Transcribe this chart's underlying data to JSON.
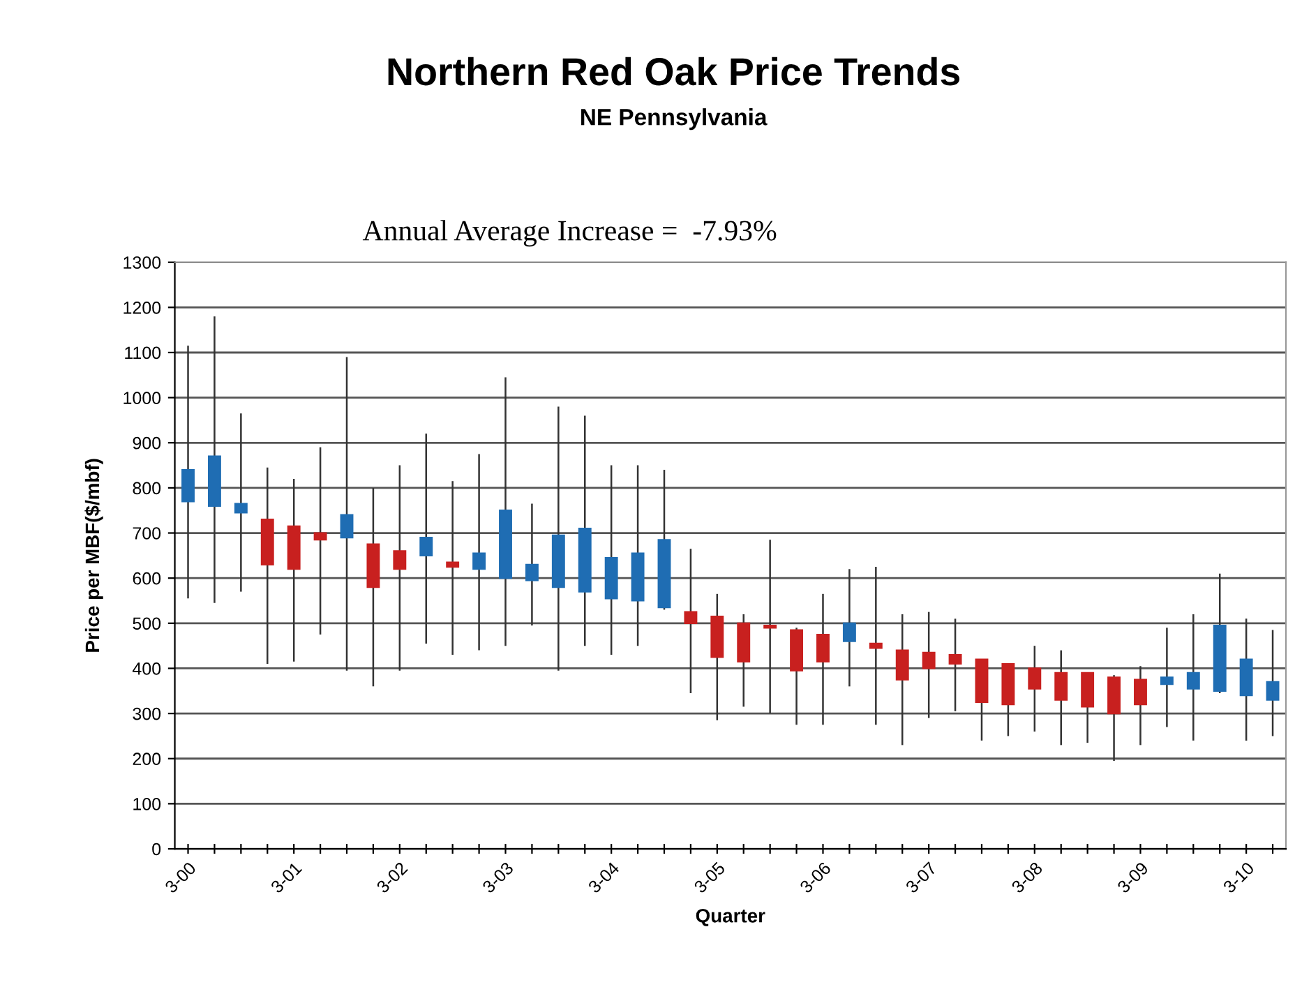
{
  "chart_data": {
    "type": "candlestick",
    "title": "Northern Red Oak Price Trends",
    "subtitle": "NE Pennsylvania",
    "xlabel": "Quarter",
    "ylabel": "Price per MBF($/mbf)",
    "annotations": [
      "Annual Average Increase =  -7.93%"
    ],
    "categories": [
      "3-00",
      null,
      null,
      null,
      "3-01",
      null,
      null,
      null,
      "3-02",
      null,
      null,
      null,
      "3-03",
      null,
      null,
      null,
      "3-04",
      null,
      null,
      null,
      "3-05",
      null,
      null,
      null,
      "3-06",
      null,
      null,
      null,
      "3-07",
      null,
      null,
      null,
      "3-08",
      null,
      null,
      null,
      "3-09",
      null,
      null,
      null,
      "3-10",
      null
    ],
    "ohlc": [
      [
        770,
        1115,
        555,
        840
      ],
      [
        760,
        1180,
        545,
        870
      ],
      [
        745,
        965,
        570,
        765
      ],
      [
        730,
        845,
        410,
        630
      ],
      [
        715,
        820,
        415,
        620
      ],
      [
        700,
        890,
        475,
        685
      ],
      [
        690,
        1090,
        395,
        740
      ],
      [
        675,
        800,
        360,
        580
      ],
      [
        660,
        850,
        395,
        620
      ],
      [
        650,
        920,
        455,
        690
      ],
      [
        635,
        815,
        430,
        625
      ],
      [
        620,
        875,
        440,
        655
      ],
      [
        600,
        1045,
        450,
        750
      ],
      [
        595,
        765,
        495,
        630
      ],
      [
        580,
        980,
        395,
        695
      ],
      [
        570,
        960,
        450,
        710
      ],
      [
        555,
        850,
        430,
        645
      ],
      [
        550,
        850,
        450,
        655
      ],
      [
        535,
        840,
        530,
        685
      ],
      [
        525,
        665,
        345,
        500
      ],
      [
        515,
        565,
        285,
        425
      ],
      [
        500,
        520,
        315,
        415
      ],
      [
        495,
        685,
        300,
        490
      ],
      [
        485,
        490,
        275,
        395
      ],
      [
        475,
        565,
        275,
        415
      ],
      [
        460,
        620,
        360,
        500
      ],
      [
        455,
        625,
        275,
        445
      ],
      [
        440,
        520,
        230,
        375
      ],
      [
        435,
        525,
        290,
        400
      ],
      [
        430,
        510,
        305,
        410
      ],
      [
        420,
        420,
        240,
        325
      ],
      [
        410,
        410,
        250,
        320
      ],
      [
        400,
        450,
        260,
        355
      ],
      [
        390,
        440,
        230,
        330
      ],
      [
        390,
        390,
        235,
        315
      ],
      [
        380,
        385,
        195,
        300
      ],
      [
        375,
        405,
        230,
        320
      ],
      [
        365,
        490,
        270,
        380
      ],
      [
        355,
        520,
        240,
        390
      ],
      [
        350,
        610,
        345,
        495
      ],
      [
        340,
        510,
        240,
        420
      ],
      [
        330,
        485,
        250,
        370
      ]
    ],
    "colors": [
      "#1f6db3",
      "#1f6db3",
      "#1f6db3",
      "#c8201f",
      "#c8201f",
      "#c8201f",
      "#1f6db3",
      "#c8201f",
      "#c8201f",
      "#1f6db3",
      "#c8201f",
      "#1f6db3",
      "#1f6db3",
      "#1f6db3",
      "#1f6db3",
      "#1f6db3",
      "#1f6db3",
      "#1f6db3",
      "#1f6db3",
      "#c8201f",
      "#c8201f",
      "#c8201f",
      "#c8201f",
      "#c8201f",
      "#c8201f",
      "#1f6db3",
      "#c8201f",
      "#c8201f",
      "#c8201f",
      "#c8201f",
      "#c8201f",
      "#c8201f",
      "#c8201f",
      "#c8201f",
      "#c8201f",
      "#c8201f",
      "#c8201f",
      "#1f6db3",
      "#1f6db3",
      "#1f6db3",
      "#1f6db3",
      "#1f6db3"
    ],
    "ylim": [
      0,
      1300
    ],
    "yticks": [
      0,
      100,
      200,
      300,
      400,
      500,
      600,
      700,
      800,
      900,
      1000,
      1100,
      1200,
      1300
    ],
    "grid": "y"
  }
}
